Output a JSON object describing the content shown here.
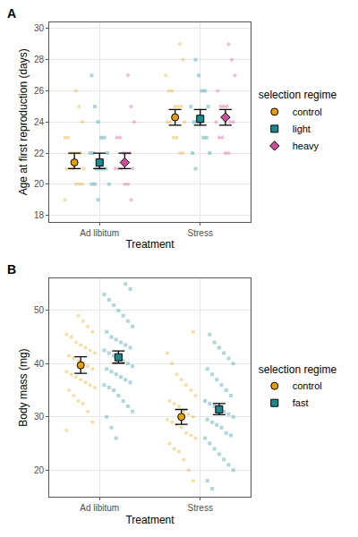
{
  "chart_data": [
    {
      "type": "scatter",
      "title": "A",
      "x_label": "Treatment",
      "y_label": "Age at first reproduction (days)",
      "categories": [
        "Ad libitum",
        "Stress"
      ],
      "ylim": [
        17.6,
        30.4
      ],
      "yticks": [
        18,
        20,
        22,
        24,
        26,
        28,
        30
      ],
      "grid": true,
      "legend": "right",
      "legend_title": "selection regime",
      "series": [
        {
          "name": "control",
          "color": "#E69F00",
          "marker": "circle",
          "mean": [
            21.4,
            24.3
          ],
          "ci_lower": [
            21.0,
            23.8
          ],
          "ci_upper": [
            22.0,
            24.8
          ],
          "values": [
            [
              19,
              20,
              20,
              20,
              21,
              21,
              21,
              21,
              22,
              22,
              22,
              22,
              23,
              23,
              24,
              25,
              26
            ],
            [
              22,
              22,
              23,
              23,
              24,
              24,
              24,
              25,
              25,
              25,
              26,
              26,
              27,
              28,
              29
            ]
          ]
        },
        {
          "name": "light",
          "color": "#1B8A8F",
          "marker": "square",
          "mean": [
            21.4,
            24.2
          ],
          "ci_lower": [
            21.0,
            23.8
          ],
          "ci_upper": [
            22.0,
            24.8
          ],
          "values": [
            [
              19,
              20,
              20,
              20,
              21,
              21,
              21,
              21,
              22,
              22,
              22,
              23,
              23,
              24,
              25,
              27
            ],
            [
              21,
              22,
              22,
              23,
              23,
              24,
              24,
              24,
              25,
              25,
              26,
              26,
              27,
              28
            ]
          ]
        },
        {
          "name": "heavy",
          "color": "#CC4C9B",
          "marker": "diamond",
          "mean": [
            21.4,
            24.3
          ],
          "ci_lower": [
            21.0,
            23.8
          ],
          "ci_upper": [
            22.0,
            24.8
          ],
          "values": [
            [
              19,
              20,
              20,
              21,
              21,
              21,
              21,
              22,
              22,
              22,
              23,
              23,
              24,
              25,
              27
            ],
            [
              22,
              22,
              23,
              23,
              24,
              24,
              24,
              25,
              25,
              25,
              26,
              27,
              28,
              29
            ]
          ]
        }
      ]
    },
    {
      "type": "scatter",
      "title": "B",
      "x_label": "Treatment",
      "y_label": "Body mass (mg)",
      "categories": [
        "Ad libitum",
        "Stress"
      ],
      "ylim": [
        15,
        56
      ],
      "yticks": [
        20,
        30,
        40,
        50
      ],
      "grid": true,
      "legend": "right",
      "legend_title": "selection regime",
      "series": [
        {
          "name": "control",
          "color": "#E69F00",
          "marker": "circle",
          "mean": [
            39.7,
            30.0
          ],
          "ci_lower": [
            38.2,
            28.6
          ],
          "ci_upper": [
            41.3,
            31.4
          ],
          "values": [
            [
              27.5,
              29,
              31,
              32.5,
              33,
              34,
              35,
              35.5,
              36,
              36.5,
              37,
              37.5,
              38,
              38.5,
              39,
              39.5,
              40,
              40.5,
              41,
              41.5,
              42,
              42.5,
              43,
              43.5,
              44,
              45,
              45.5,
              46,
              47,
              48,
              49
            ],
            [
              18,
              20,
              22,
              23.5,
              24,
              25,
              26,
              26.5,
              27,
              28,
              28.5,
              29,
              29.5,
              30,
              30.5,
              31,
              32,
              32.5,
              33,
              34,
              35,
              36,
              37,
              38,
              40,
              42,
              46
            ]
          ]
        },
        {
          "name": "fast",
          "color": "#1B8A8F",
          "marker": "square",
          "mean": [
            41.2,
            31.4
          ],
          "ci_lower": [
            40.1,
            30.4
          ],
          "ci_upper": [
            42.4,
            32.5
          ],
          "values": [
            [
              26,
              28,
              30,
              31,
              32,
              33,
              34,
              35,
              35.5,
              36,
              36.5,
              37,
              37.5,
              38,
              38.5,
              39,
              39.5,
              40,
              40.5,
              41,
              41.5,
              42,
              42.5,
              43,
              43.5,
              44,
              44.5,
              45,
              46,
              47,
              48,
              49,
              50,
              51,
              52,
              53,
              54,
              55
            ],
            [
              16.5,
              18,
              20,
              21,
              22,
              23,
              24,
              25,
              26,
              26.5,
              27,
              28,
              28.5,
              29,
              29.5,
              30,
              30.5,
              31,
              31.5,
              32,
              32.5,
              33,
              34,
              35,
              36,
              37,
              38,
              39,
              40,
              41,
              42,
              43,
              44,
              45.5
            ]
          ]
        }
      ]
    }
  ]
}
